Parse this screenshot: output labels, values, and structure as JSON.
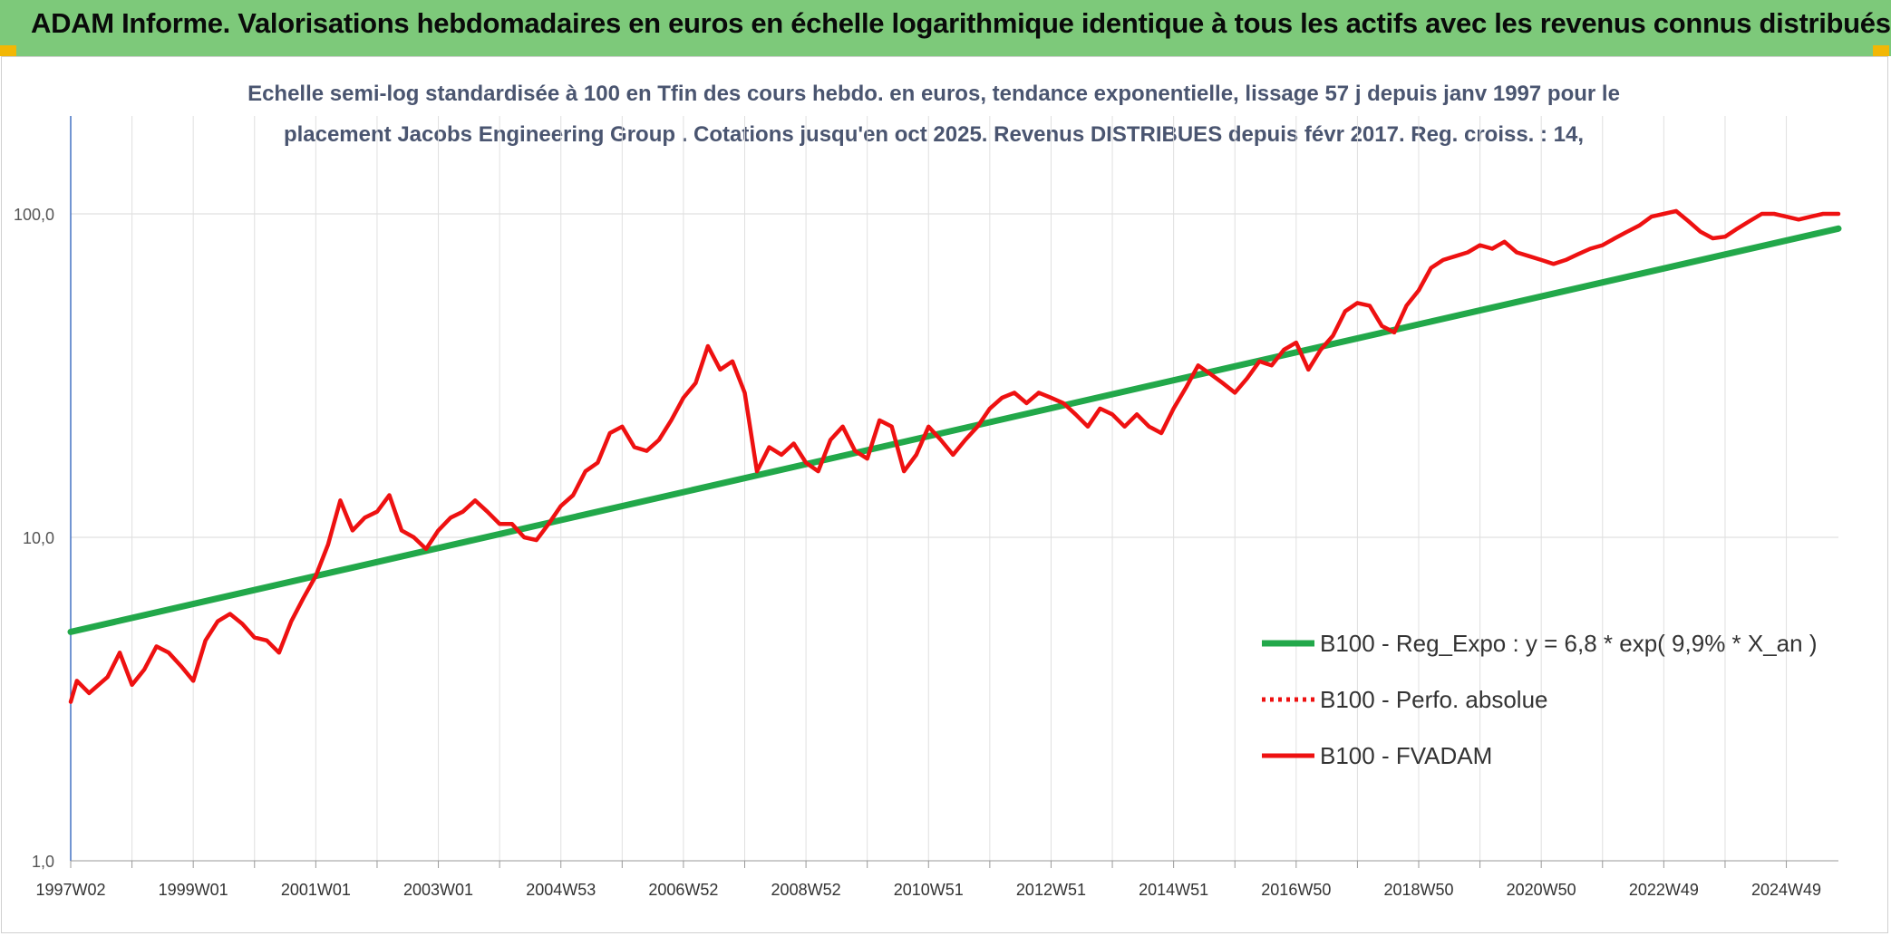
{
  "header": {
    "title": "ADAM Informe. Valorisations hebdomadaires en euros en échelle logarithmique identique à tous les actifs avec les revenus connus distribués"
  },
  "chart_data": {
    "type": "line",
    "title_line1": "Echelle semi-log standardisée à 100 en Tfin des cours hebdo. en euros, tendance exponentielle, lissage 57 j depuis janv 1997 pour le",
    "title_line2": "placement Jacobs Engineering Group . Cotations jusqu'en oct 2025. Revenus DISTRIBUES depuis févr 2017. Reg. croiss. : 14,",
    "y_scale": "log",
    "ylim": [
      1,
      200
    ],
    "grid": true,
    "yticks": [
      {
        "value": 1,
        "label": "1,0"
      },
      {
        "value": 10,
        "label": "10,0"
      },
      {
        "value": 100,
        "label": "100,0"
      }
    ],
    "xlim": [
      1997.0,
      2025.85
    ],
    "xticks": [
      {
        "x": 1997.0,
        "label": "1997W02"
      },
      {
        "x": 1999.0,
        "label": "1999W01"
      },
      {
        "x": 2001.0,
        "label": "2001W01"
      },
      {
        "x": 2003.0,
        "label": "2003W01"
      },
      {
        "x": 2005.0,
        "label": "2004W53"
      },
      {
        "x": 2007.0,
        "label": "2006W52"
      },
      {
        "x": 2009.0,
        "label": "2008W52"
      },
      {
        "x": 2011.0,
        "label": "2010W51"
      },
      {
        "x": 2013.0,
        "label": "2012W51"
      },
      {
        "x": 2015.0,
        "label": "2014W51"
      },
      {
        "x": 2017.0,
        "label": "2016W50"
      },
      {
        "x": 2019.0,
        "label": "2018W50"
      },
      {
        "x": 2021.0,
        "label": "2020W50"
      },
      {
        "x": 2023.0,
        "label": "2022W49"
      },
      {
        "x": 2025.0,
        "label": "2024W49"
      }
    ],
    "legend_position": "right",
    "series": [
      {
        "name": "B100 - Reg_Expo : y = 6,8 * exp( 9,9% *  X_an )",
        "color": "#22a84a",
        "style": "solid",
        "x": [
          1997.0,
          2025.85
        ],
        "y": [
          5.1,
          90
        ]
      },
      {
        "name": "B100 - Perfo. absolue",
        "color": "#ee1111",
        "style": "dotted",
        "x": [],
        "y": []
      },
      {
        "name": "B100 - FVADAM",
        "color": "#ee1111",
        "style": "solid",
        "x": [
          1997.0,
          1997.1,
          1997.3,
          1997.6,
          1997.8,
          1998.0,
          1998.2,
          1998.4,
          1998.6,
          1998.8,
          1999.0,
          1999.2,
          1999.4,
          1999.6,
          1999.8,
          2000.0,
          2000.2,
          2000.4,
          2000.6,
          2000.8,
          2001.0,
          2001.2,
          2001.4,
          2001.6,
          2001.8,
          2002.0,
          2002.2,
          2002.4,
          2002.6,
          2002.8,
          2003.0,
          2003.2,
          2003.4,
          2003.6,
          2003.8,
          2004.0,
          2004.2,
          2004.4,
          2004.6,
          2004.8,
          2005.0,
          2005.2,
          2005.4,
          2005.6,
          2005.8,
          2006.0,
          2006.2,
          2006.4,
          2006.6,
          2006.8,
          2007.0,
          2007.2,
          2007.4,
          2007.6,
          2007.8,
          2008.0,
          2008.2,
          2008.4,
          2008.6,
          2008.8,
          2009.0,
          2009.2,
          2009.4,
          2009.6,
          2009.8,
          2010.0,
          2010.2,
          2010.4,
          2010.6,
          2010.8,
          2011.0,
          2011.2,
          2011.4,
          2011.6,
          2011.8,
          2012.0,
          2012.2,
          2012.4,
          2012.6,
          2012.8,
          2013.0,
          2013.2,
          2013.4,
          2013.6,
          2013.8,
          2014.0,
          2014.2,
          2014.4,
          2014.6,
          2014.8,
          2015.0,
          2015.2,
          2015.4,
          2015.6,
          2015.8,
          2016.0,
          2016.2,
          2016.4,
          2016.6,
          2016.8,
          2017.0,
          2017.2,
          2017.4,
          2017.6,
          2017.8,
          2018.0,
          2018.2,
          2018.4,
          2018.6,
          2018.8,
          2019.0,
          2019.2,
          2019.4,
          2019.6,
          2019.8,
          2020.0,
          2020.2,
          2020.4,
          2020.6,
          2020.8,
          2021.0,
          2021.2,
          2021.4,
          2021.6,
          2021.8,
          2022.0,
          2022.2,
          2022.4,
          2022.6,
          2022.8,
          2023.0,
          2023.2,
          2023.4,
          2023.6,
          2023.8,
          2024.0,
          2024.2,
          2024.4,
          2024.6,
          2024.8,
          2025.0,
          2025.2,
          2025.4,
          2025.6,
          2025.85
        ],
        "y": [
          3.1,
          3.6,
          3.3,
          3.7,
          4.4,
          3.5,
          3.9,
          4.6,
          4.4,
          4.0,
          3.6,
          4.8,
          5.5,
          5.8,
          5.4,
          4.9,
          4.8,
          4.4,
          5.5,
          6.5,
          7.6,
          9.5,
          13.0,
          10.5,
          11.5,
          12.0,
          13.5,
          10.5,
          10.0,
          9.2,
          10.5,
          11.5,
          12.0,
          13.0,
          12.0,
          11.0,
          11.0,
          10.0,
          9.8,
          11.0,
          12.5,
          13.5,
          16.0,
          17.0,
          21.0,
          22.0,
          19.0,
          18.5,
          20.0,
          23.0,
          27.0,
          30.0,
          39.0,
          33.0,
          35.0,
          28.0,
          16.0,
          19.0,
          18.0,
          19.5,
          17.0,
          16.0,
          20.0,
          22.0,
          18.5,
          17.5,
          23.0,
          22.0,
          16.0,
          18.0,
          22.0,
          20.0,
          18.0,
          20.0,
          22.0,
          25.0,
          27.0,
          28.0,
          26.0,
          28.0,
          27.0,
          26.0,
          24.0,
          22.0,
          25.0,
          24.0,
          22.0,
          24.0,
          22.0,
          21.0,
          25.0,
          29.0,
          34.0,
          32.0,
          30.0,
          28.0,
          31.0,
          35.0,
          34.0,
          38.0,
          40.0,
          33.0,
          38.0,
          42.0,
          50.0,
          53.0,
          52.0,
          45.0,
          43.0,
          52.0,
          58.0,
          68.0,
          72.0,
          74.0,
          76.0,
          80.0,
          78.0,
          82.0,
          76.0,
          74.0,
          72.0,
          70.0,
          72.0,
          75.0,
          78.0,
          80.0,
          84.0,
          88.0,
          92.0,
          98.0,
          100.0,
          102.0,
          95.0,
          88.0,
          84.0,
          85.0,
          90.0,
          95.0,
          100.0,
          100.0,
          98.0,
          96.0,
          98.0,
          100.0,
          100.0
        ]
      }
    ]
  }
}
